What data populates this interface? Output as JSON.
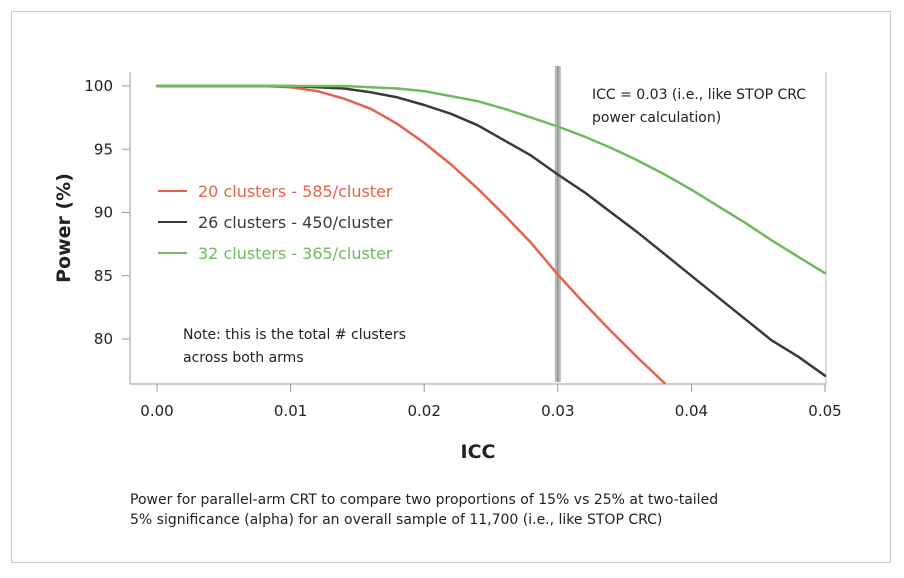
{
  "chart_data": {
    "type": "line",
    "xlabel": "ICC",
    "ylabel": "Power (%)",
    "xlim": [
      0.0,
      0.05
    ],
    "ylim": [
      76.5,
      101.5
    ],
    "x_ticks": [
      "0.00",
      "0.01",
      "0.02",
      "0.03",
      "0.04",
      "0.05"
    ],
    "y_ticks": [
      "100",
      "95",
      "90",
      "85",
      "80"
    ],
    "grid": false,
    "legend_position": "left, inside plot",
    "series": [
      {
        "name": "20 clusters - 585/cluster",
        "color": "#e8614a",
        "x": [
          0.0,
          0.004,
          0.008,
          0.01,
          0.012,
          0.014,
          0.016,
          0.018,
          0.02,
          0.022,
          0.024,
          0.026,
          0.028,
          0.03,
          0.032,
          0.034,
          0.036,
          0.038
        ],
        "y": [
          100,
          100,
          100,
          99.9,
          99.6,
          99.0,
          98.2,
          97.0,
          95.5,
          93.8,
          91.9,
          89.8,
          87.6,
          85.1,
          82.8,
          80.6,
          78.5,
          76.5
        ]
      },
      {
        "name": "26 clusters - 450/cluster",
        "color": "#3a3a3a",
        "x": [
          0.0,
          0.004,
          0.008,
          0.01,
          0.012,
          0.014,
          0.016,
          0.018,
          0.02,
          0.022,
          0.024,
          0.026,
          0.028,
          0.03,
          0.032,
          0.034,
          0.036,
          0.038,
          0.04,
          0.042,
          0.044,
          0.046,
          0.048,
          0.05
        ],
        "y": [
          100,
          100,
          100,
          100,
          99.9,
          99.8,
          99.5,
          99.1,
          98.5,
          97.8,
          96.9,
          95.7,
          94.5,
          93.0,
          91.6,
          90.0,
          88.4,
          86.7,
          85.0,
          83.3,
          81.6,
          79.9,
          78.6,
          77.1
        ]
      },
      {
        "name": "32 clusters - 365/cluster",
        "color": "#6dbb5c",
        "x": [
          0.0,
          0.004,
          0.008,
          0.01,
          0.012,
          0.014,
          0.016,
          0.018,
          0.02,
          0.022,
          0.024,
          0.026,
          0.028,
          0.03,
          0.032,
          0.034,
          0.036,
          0.038,
          0.04,
          0.042,
          0.044,
          0.046,
          0.048,
          0.05
        ],
        "y": [
          100,
          100,
          100,
          100,
          100,
          100,
          99.9,
          99.8,
          99.6,
          99.2,
          98.8,
          98.2,
          97.5,
          96.8,
          96.0,
          95.1,
          94.1,
          93.0,
          91.8,
          90.5,
          89.2,
          87.8,
          86.5,
          85.2
        ]
      }
    ],
    "reference_line": {
      "x": 0.03,
      "color": "#b3bbb7",
      "label_lines": [
        "ICC = 0.03 (i.e., like STOP CRC",
        "power calculation)"
      ]
    },
    "note_lines": [
      "Note: this is the total # clusters",
      "across both arms"
    ],
    "caption_lines": [
      "Power for parallel-arm CRT to compare two proportions of 15% vs 25% at two-tailed",
      "5% significance (alpha) for an overall sample of 11,700 (i.e., like STOP CRC)"
    ]
  }
}
